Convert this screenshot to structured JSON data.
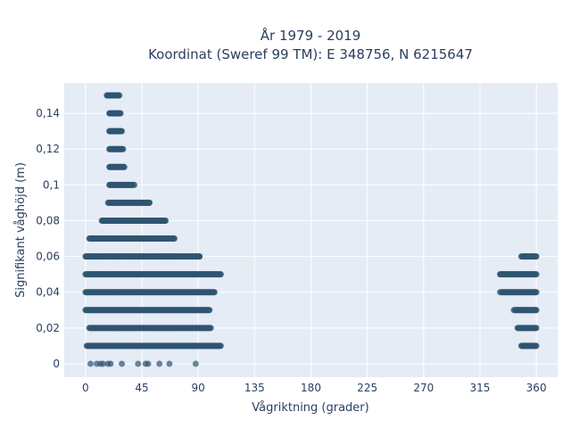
{
  "chart_data": {
    "type": "scatter",
    "title_line1": "År 1979 - 2019",
    "title_line2": "Koordinat (Sweref 99 TM): E 348756, N 6215647",
    "xlabel": "Vågriktning (grader)",
    "ylabel": "Signifikant våghöjd (m)",
    "xlim": [
      -17,
      377
    ],
    "ylim": [
      -0.0075,
      0.157
    ],
    "x_ticks": [
      0,
      45,
      90,
      135,
      180,
      225,
      270,
      315,
      360
    ],
    "x_tick_labels": [
      "0",
      "45",
      "90",
      "135",
      "180",
      "225",
      "270",
      "315",
      "360"
    ],
    "y_ticks": [
      0,
      0.02,
      0.04,
      0.06,
      0.08,
      0.1,
      0.12,
      0.14
    ],
    "y_tick_labels": [
      "0",
      "0,02",
      "0,04",
      "0,06",
      "0,08",
      "0,1",
      "0,12",
      "0,14"
    ],
    "marker_color": "#2f5670",
    "plot_bg": "#e5ecf6",
    "grid": true,
    "bands": [
      {
        "y": 0.15,
        "x_ranges": [
          [
            17,
            27
          ]
        ]
      },
      {
        "y": 0.14,
        "x_ranges": [
          [
            19,
            28
          ]
        ]
      },
      {
        "y": 0.13,
        "x_ranges": [
          [
            19,
            29
          ]
        ]
      },
      {
        "y": 0.12,
        "x_ranges": [
          [
            19,
            30
          ]
        ]
      },
      {
        "y": 0.11,
        "x_ranges": [
          [
            19,
            31
          ]
        ]
      },
      {
        "y": 0.1,
        "x_ranges": [
          [
            19,
            38
          ]
        ]
      },
      {
        "y": 0.09,
        "x_ranges": [
          [
            18,
            51
          ]
        ]
      },
      {
        "y": 0.08,
        "x_ranges": [
          [
            13,
            64
          ]
        ]
      },
      {
        "y": 0.07,
        "x_ranges": [
          [
            3,
            71
          ]
        ]
      },
      {
        "y": 0.06,
        "x_ranges": [
          [
            0,
            91
          ],
          [
            348,
            360
          ]
        ]
      },
      {
        "y": 0.05,
        "x_ranges": [
          [
            0,
            108
          ],
          [
            331,
            360
          ]
        ]
      },
      {
        "y": 0.04,
        "x_ranges": [
          [
            0,
            103
          ],
          [
            332,
            360
          ]
        ]
      },
      {
        "y": 0.03,
        "x_ranges": [
          [
            0,
            99
          ],
          [
            343,
            360
          ]
        ]
      },
      {
        "y": 0.02,
        "x_ranges": [
          [
            3,
            100
          ],
          [
            345,
            360
          ]
        ]
      },
      {
        "y": 0.01,
        "x_ranges": [
          [
            1,
            108
          ],
          [
            348,
            360
          ]
        ]
      }
    ],
    "sparse_points": [
      {
        "x": 4,
        "y": 0
      },
      {
        "x": 9,
        "y": 0
      },
      {
        "x": 12,
        "y": 0
      },
      {
        "x": 14,
        "y": 0
      },
      {
        "x": 18,
        "y": 0
      },
      {
        "x": 20,
        "y": 0
      },
      {
        "x": 29,
        "y": 0
      },
      {
        "x": 42,
        "y": 0
      },
      {
        "x": 48,
        "y": 0
      },
      {
        "x": 50,
        "y": 0
      },
      {
        "x": 59,
        "y": 0
      },
      {
        "x": 67,
        "y": 0
      },
      {
        "x": 88,
        "y": 0
      },
      {
        "x": 39,
        "y": 0.1
      },
      {
        "x": 51,
        "y": 0.09
      },
      {
        "x": 88,
        "y": 0.06
      },
      {
        "x": 91,
        "y": 0.06
      },
      {
        "x": 331,
        "y": 0.04
      },
      {
        "x": 342,
        "y": 0.03
      }
    ]
  }
}
